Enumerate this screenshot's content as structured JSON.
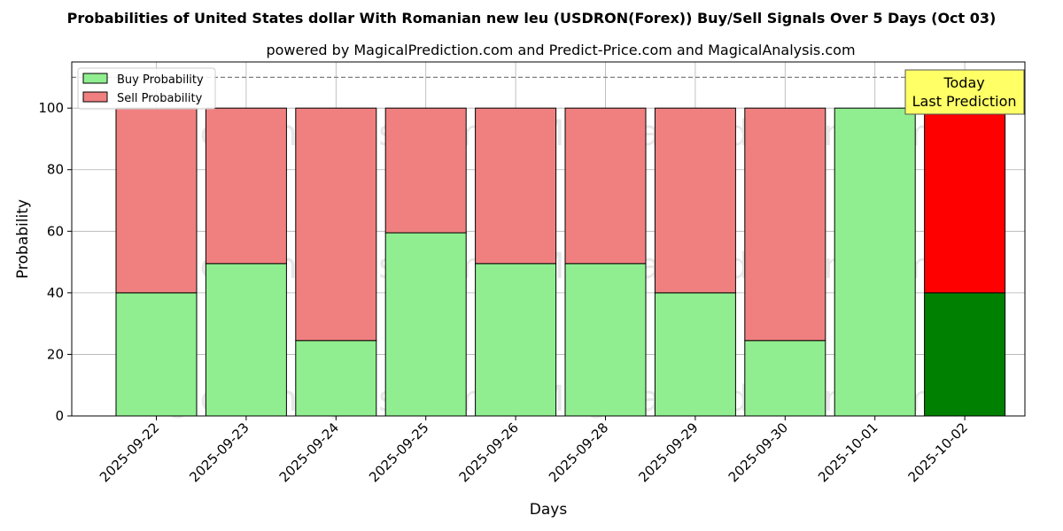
{
  "chart_data": {
    "type": "bar",
    "stacked": true,
    "title": "Probabilities of United States dollar With Romanian new leu (USDRON(Forex)) Buy/Sell Signals Over 5 Days (Oct 03)",
    "subtitle": "powered by MagicalPrediction.com and Predict-Price.com and MagicalAnalysis.com",
    "xlabel": "Days",
    "ylabel": "Probability",
    "ylim": [
      0,
      115
    ],
    "yticks": [
      0,
      20,
      40,
      60,
      80,
      100
    ],
    "grid": true,
    "legend_position": "top-left",
    "reference_line": 110,
    "categories": [
      "2025-09-22",
      "2025-09-23",
      "2025-09-24",
      "2025-09-25",
      "2025-09-26",
      "2025-09-28",
      "2025-09-29",
      "2025-09-30",
      "2025-10-01",
      "2025-10-02"
    ],
    "series": [
      {
        "name": "Buy Probability",
        "values": [
          40,
          49.5,
          24.5,
          59.5,
          49.5,
          49.5,
          40,
          24.5,
          100,
          40
        ]
      },
      {
        "name": "Sell Probability",
        "values": [
          60,
          50.5,
          75.5,
          40.5,
          50.5,
          50.5,
          60,
          75.5,
          0,
          60
        ]
      }
    ],
    "annotation": {
      "lines": [
        "Today",
        "Last Prediction"
      ],
      "category_index": 9
    },
    "watermarks": [
      "MagicalAnalysis.com",
      "MagicalPrediction.com"
    ],
    "colors": {
      "buy": "#90ee90",
      "sell": "#f08080",
      "buy_highlight": "#008000",
      "sell_highlight": "#ff0000",
      "annotation_bg": "#ffff66"
    }
  }
}
